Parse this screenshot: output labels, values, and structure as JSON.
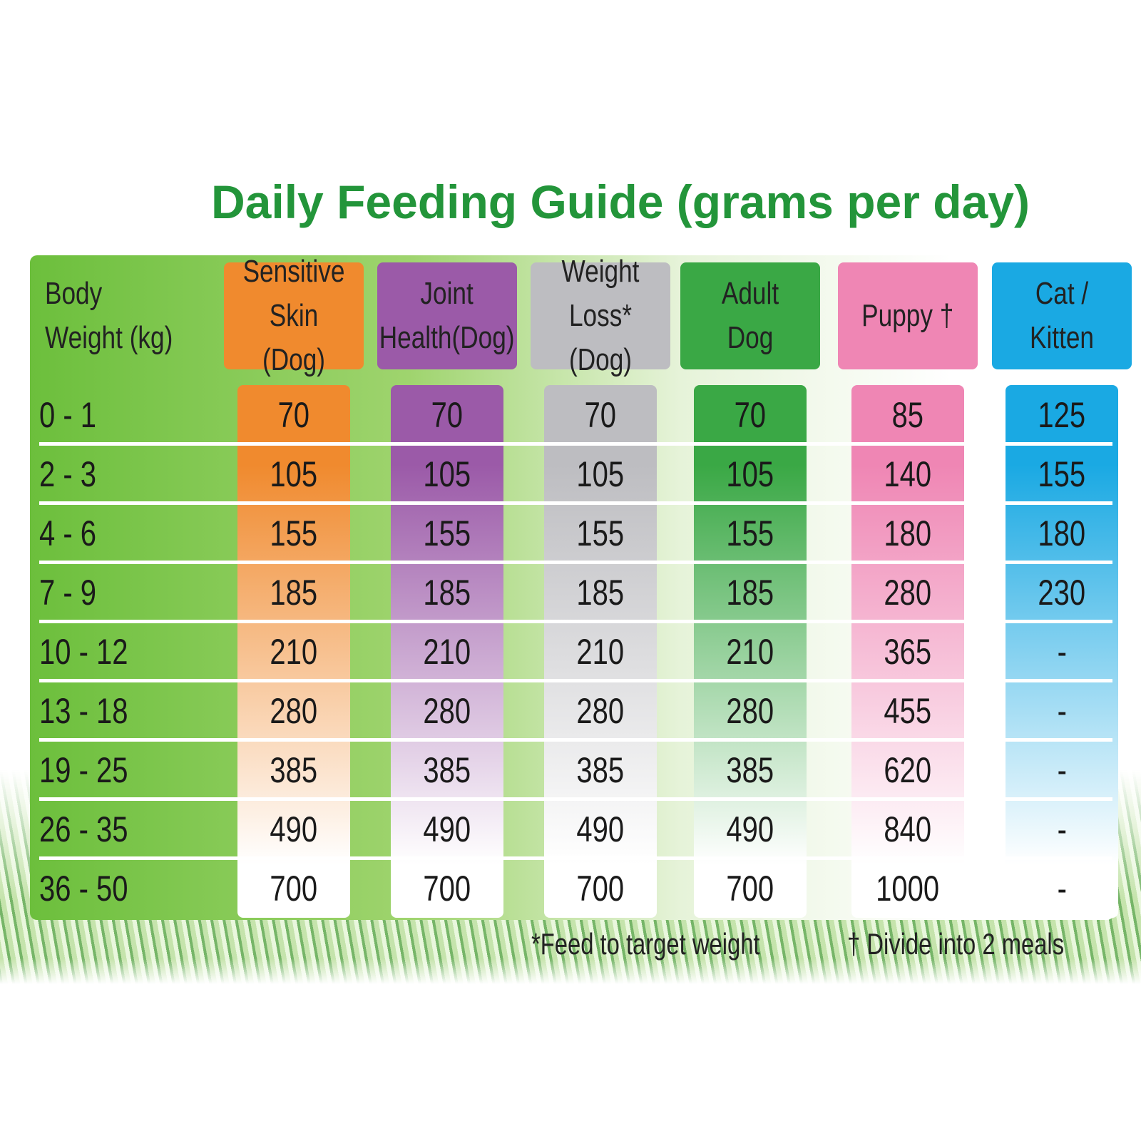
{
  "title": "Daily Feeding Guide (grams per day)",
  "table": {
    "headers": [
      "Body Weight (kg)",
      "Sensitive Skin (Dog)",
      "Joint Health(Dog)",
      "Weight Loss*(Dog)",
      "Adult Dog",
      "Puppy †",
      "Cat / Kitten"
    ],
    "rows": [
      [
        "0 - 1",
        70,
        70,
        70,
        70,
        85,
        125
      ],
      [
        "2 - 3",
        105,
        105,
        105,
        105,
        140,
        155
      ],
      [
        "4 - 6",
        155,
        155,
        155,
        155,
        180,
        180
      ],
      [
        "7 - 9",
        185,
        185,
        185,
        185,
        280,
        230
      ],
      [
        "10 - 12",
        210,
        210,
        210,
        210,
        365,
        "-"
      ],
      [
        "13 - 18",
        280,
        280,
        280,
        280,
        455,
        "-"
      ],
      [
        "19 - 25",
        385,
        385,
        385,
        385,
        620,
        "-"
      ],
      [
        "26 - 35",
        490,
        490,
        490,
        490,
        840,
        "-"
      ],
      [
        "36 - 50",
        700,
        700,
        700,
        700,
        1000,
        "-"
      ]
    ]
  },
  "footnotes": [
    "*Feed to target weight",
    "† Divide into 2 meals"
  ]
}
